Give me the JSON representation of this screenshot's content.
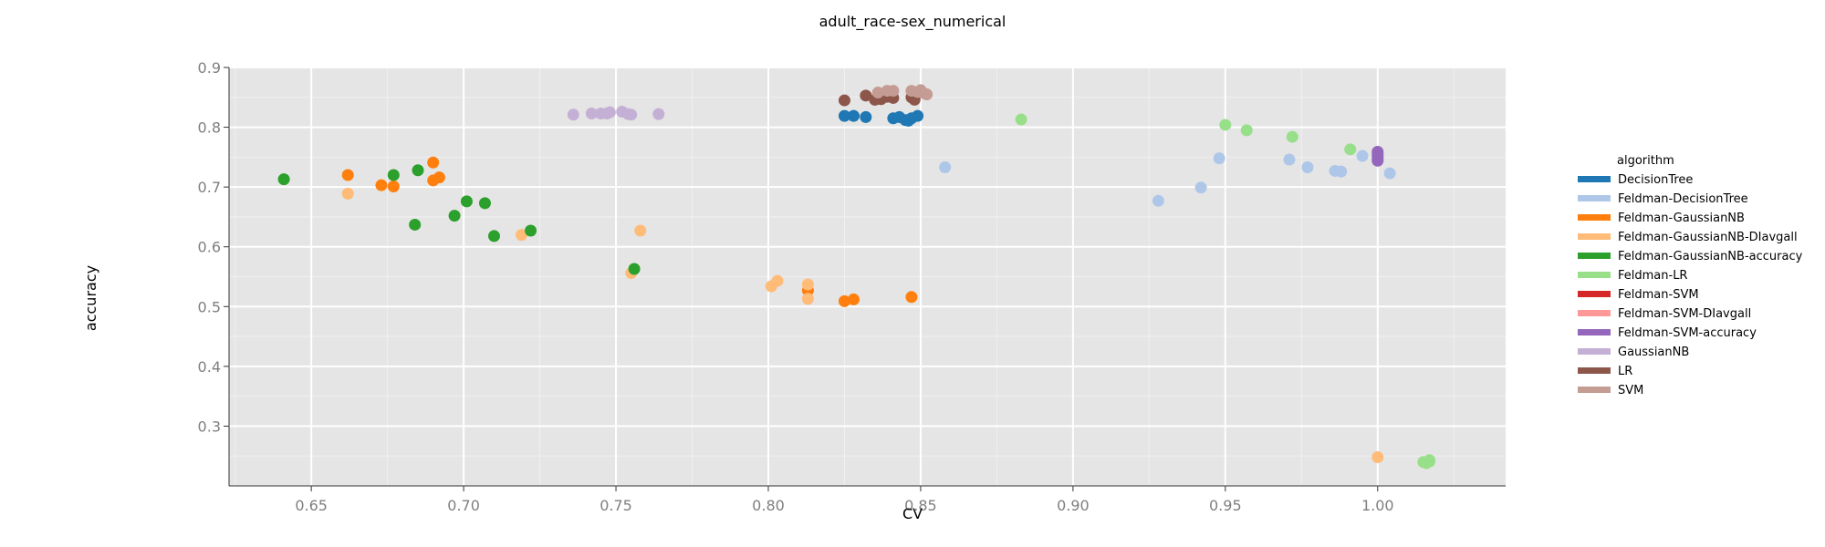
{
  "chart_data": {
    "type": "scatter",
    "title": "adult_race-sex_numerical",
    "xlabel": "CV",
    "ylabel": "accuracy",
    "xlim": [
      0.623,
      1.042
    ],
    "ylim": [
      0.2,
      0.9
    ],
    "x_ticks": [
      "0.65",
      "0.70",
      "0.75",
      "0.80",
      "0.85",
      "0.90",
      "0.95",
      "1.00"
    ],
    "x_tick_values": [
      0.65,
      0.7,
      0.75,
      0.8,
      0.85,
      0.9,
      0.95,
      1.0
    ],
    "y_ticks": [
      "0.3",
      "0.4",
      "0.5",
      "0.6",
      "0.7",
      "0.8",
      "0.9"
    ],
    "y_tick_values": [
      0.3,
      0.4,
      0.5,
      0.6,
      0.7,
      0.8,
      0.9
    ],
    "grid": true,
    "legend_title": "algorithm",
    "legend_position": "right",
    "series": [
      {
        "name": "DecisionTree",
        "color": "#1f77b4",
        "points": [
          [
            0.825,
            0.819
          ],
          [
            0.828,
            0.819
          ],
          [
            0.832,
            0.817
          ],
          [
            0.841,
            0.815
          ],
          [
            0.843,
            0.817
          ],
          [
            0.845,
            0.812
          ],
          [
            0.846,
            0.811
          ],
          [
            0.847,
            0.815
          ],
          [
            0.849,
            0.819
          ]
        ]
      },
      {
        "name": "Feldman-DecisionTree",
        "color": "#aec7e8",
        "points": [
          [
            0.858,
            0.733
          ],
          [
            0.928,
            0.677
          ],
          [
            0.942,
            0.699
          ],
          [
            0.948,
            0.748
          ],
          [
            0.971,
            0.746
          ],
          [
            0.977,
            0.733
          ],
          [
            0.986,
            0.727
          ],
          [
            0.988,
            0.726
          ],
          [
            0.995,
            0.752
          ],
          [
            1.004,
            0.723
          ]
        ]
      },
      {
        "name": "Feldman-GaussianNB",
        "color": "#ff7f0e",
        "points": [
          [
            0.662,
            0.72
          ],
          [
            0.673,
            0.703
          ],
          [
            0.677,
            0.701
          ],
          [
            0.69,
            0.741
          ],
          [
            0.69,
            0.711
          ],
          [
            0.692,
            0.716
          ],
          [
            0.813,
            0.527
          ],
          [
            0.825,
            0.509
          ],
          [
            0.828,
            0.512
          ],
          [
            0.847,
            0.516
          ]
        ]
      },
      {
        "name": "Feldman-GaussianNB-DIavgall",
        "color": "#ffbb78",
        "points": [
          [
            0.662,
            0.689
          ],
          [
            0.719,
            0.62
          ],
          [
            0.755,
            0.556
          ],
          [
            0.758,
            0.627
          ],
          [
            0.801,
            0.534
          ],
          [
            0.803,
            0.543
          ],
          [
            0.813,
            0.513
          ],
          [
            0.813,
            0.537
          ],
          [
            1.0,
            0.248
          ]
        ]
      },
      {
        "name": "Feldman-GaussianNB-accuracy",
        "color": "#2ca02c",
        "points": [
          [
            0.641,
            0.713
          ],
          [
            0.677,
            0.72
          ],
          [
            0.684,
            0.637
          ],
          [
            0.685,
            0.728
          ],
          [
            0.697,
            0.652
          ],
          [
            0.701,
            0.676
          ],
          [
            0.707,
            0.673
          ],
          [
            0.71,
            0.618
          ],
          [
            0.722,
            0.627
          ],
          [
            0.756,
            0.563
          ]
        ]
      },
      {
        "name": "Feldman-LR",
        "color": "#98df8a",
        "points": [
          [
            0.883,
            0.813
          ],
          [
            0.95,
            0.804
          ],
          [
            0.957,
            0.795
          ],
          [
            0.972,
            0.784
          ],
          [
            0.991,
            0.763
          ],
          [
            1.015,
            0.24
          ],
          [
            1.016,
            0.238
          ],
          [
            1.017,
            0.241
          ],
          [
            1.017,
            0.243
          ]
        ]
      },
      {
        "name": "Feldman-SVM",
        "color": "#d62728",
        "points": []
      },
      {
        "name": "Feldman-SVM-DIavgall",
        "color": "#ff9896",
        "points": []
      },
      {
        "name": "Feldman-SVM-accuracy",
        "color": "#9467bd",
        "points": [
          [
            1.0,
            0.744
          ],
          [
            1.0,
            0.748
          ],
          [
            1.0,
            0.752
          ],
          [
            1.0,
            0.756
          ],
          [
            1.0,
            0.759
          ]
        ]
      },
      {
        "name": "GaussianNB",
        "color": "#c5b0d5",
        "points": [
          [
            0.736,
            0.821
          ],
          [
            0.742,
            0.823
          ],
          [
            0.745,
            0.823
          ],
          [
            0.747,
            0.823
          ],
          [
            0.748,
            0.825
          ],
          [
            0.752,
            0.826
          ],
          [
            0.754,
            0.822
          ],
          [
            0.755,
            0.821
          ],
          [
            0.764,
            0.822
          ]
        ]
      },
      {
        "name": "LR",
        "color": "#8c564b",
        "points": [
          [
            0.825,
            0.845
          ],
          [
            0.832,
            0.853
          ],
          [
            0.835,
            0.846
          ],
          [
            0.837,
            0.847
          ],
          [
            0.839,
            0.851
          ],
          [
            0.841,
            0.849
          ],
          [
            0.847,
            0.85
          ],
          [
            0.848,
            0.846
          ]
        ]
      },
      {
        "name": "SVM",
        "color": "#c49c94",
        "points": [
          [
            0.836,
            0.858
          ],
          [
            0.839,
            0.861
          ],
          [
            0.841,
            0.861
          ],
          [
            0.847,
            0.861
          ],
          [
            0.849,
            0.859
          ],
          [
            0.85,
            0.862
          ],
          [
            0.851,
            0.857
          ],
          [
            0.852,
            0.855
          ]
        ]
      }
    ]
  }
}
